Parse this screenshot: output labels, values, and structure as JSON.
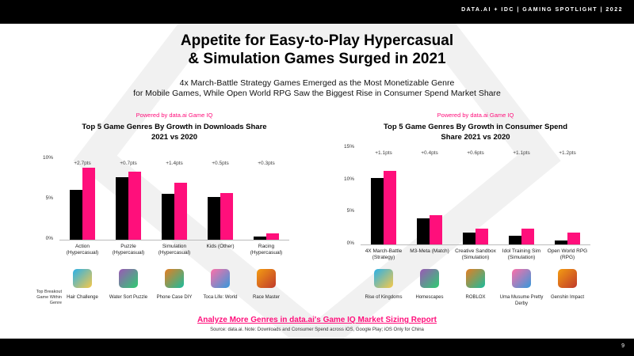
{
  "header": "DATA.AI + IDC  |  GAMING SPOTLIGHT  |  2022",
  "title": "Appetite for Easy-to-Play Hypercasual\n& Simulation Games Surged in 2021",
  "subtitle": "4x March-Battle Strategy Games Emerged  as the Most Monetizable Genre\nfor Mobile Games, While Open World RPG Saw the Biggest Rise in Consumer Spend Market Share",
  "row_label": "Top Breakout\nGame Within\nGenre",
  "link": "Analyze More Genres in data.ai's Game IQ Market Sizing Report",
  "source": "Source: data.ai. Note: Downloads and Consumer Spend across iOS, Google Play; iOS Only for China",
  "page_number": "9",
  "chart_data": [
    {
      "type": "bar",
      "powered_by": "Powered by data.ai Game IQ",
      "title": "Top 5 Game Genres By Growth in Downloads Share\n2021 vs 2020",
      "categories": [
        "Action\n(Hypercasual)",
        "Puzzle\n(Hypercasual)",
        "Simulation\n(Hypercasual)",
        "Kids (Other)",
        "Racing\n(Hypercasual)"
      ],
      "series": [
        {
          "color": "#000000",
          "values": [
            6.2,
            7.7,
            5.7,
            5.3,
            0.4
          ]
        },
        {
          "color": "#ff0f7b",
          "values": [
            8.9,
            8.4,
            7.1,
            5.8,
            0.8
          ]
        }
      ],
      "annotations": [
        "+2.7pts",
        "+0.7pts",
        "+1.4pts",
        "+0.5pts",
        "+0.3pts"
      ],
      "games": [
        "Hair Challenge",
        "Water Sort Puzzle",
        "Phone Case DIY",
        "Toca Life: World",
        "Race Master"
      ],
      "ylim": [
        0,
        10
      ],
      "yticks": [
        {
          "value": 0,
          "label": "0%"
        },
        {
          "value": 5,
          "label": "5%"
        },
        {
          "value": 10,
          "label": "10%"
        }
      ],
      "grid": false
    },
    {
      "type": "bar",
      "powered_by": "Powered by data.ai Game IQ",
      "title": "Top 5 Game Genres By Growth in Consumer Spend\nShare 2021 vs 2020",
      "categories": [
        "4X March-Battle\n(Strategy)",
        "M3-Meta (Match)",
        "Creative Sandbox\n(Simulation)",
        "Idol Training Sim\n(Simulation)",
        "Open World RPG\n(RPG)"
      ],
      "series": [
        {
          "color": "#000000",
          "values": [
            10.3,
            4.1,
            1.9,
            1.3,
            0.6
          ]
        },
        {
          "color": "#ff0f7b",
          "values": [
            11.4,
            4.5,
            2.5,
            2.4,
            1.8
          ]
        }
      ],
      "annotations": [
        "+1.1pts",
        "+0.4pts",
        "+0.6pts",
        "+1.1pts",
        "+1.2pts"
      ],
      "games": [
        "Rise of Kingdoms",
        "Homescapes",
        "ROBLOX",
        "Uma Musume Pretty\nDerby",
        "Genshin Impact"
      ],
      "ylim": [
        0,
        15
      ],
      "yticks": [
        {
          "value": 0,
          "label": "0%"
        },
        {
          "value": 5,
          "label": "5%"
        },
        {
          "value": 10,
          "label": "10%"
        },
        {
          "value": 15,
          "label": "15%"
        }
      ],
      "grid": false
    }
  ]
}
